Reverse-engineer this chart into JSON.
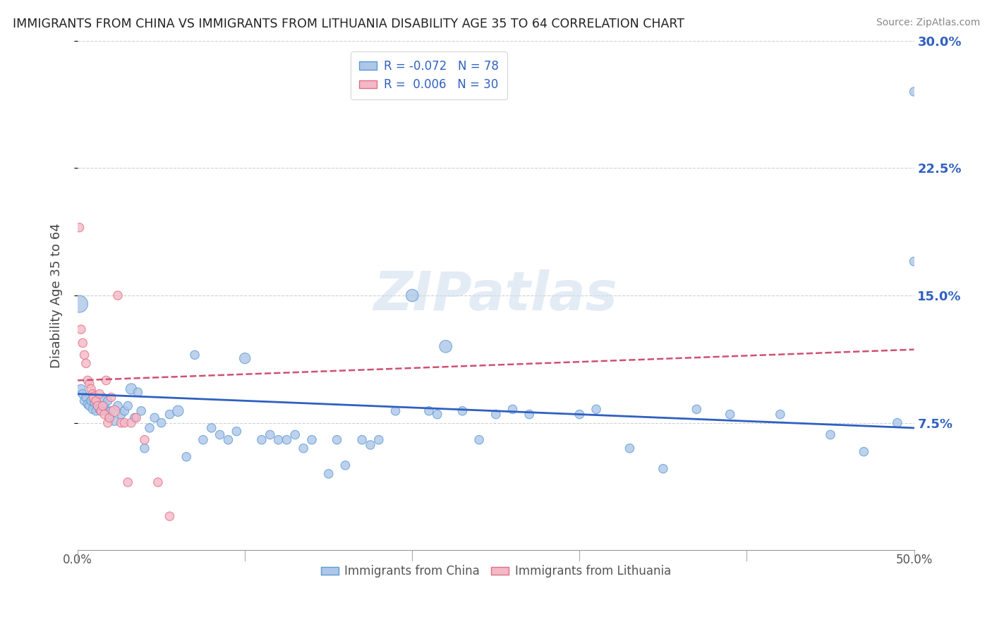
{
  "title": "IMMIGRANTS FROM CHINA VS IMMIGRANTS FROM LITHUANIA DISABILITY AGE 35 TO 64 CORRELATION CHART",
  "source": "Source: ZipAtlas.com",
  "ylabel": "Disability Age 35 to 64",
  "xlim": [
    0,
    0.5
  ],
  "ylim": [
    0,
    0.3
  ],
  "yticks": [
    0.075,
    0.15,
    0.225,
    0.3
  ],
  "ytick_labels": [
    "7.5%",
    "15.0%",
    "22.5%",
    "30.0%"
  ],
  "xtick_left_label": "0.0%",
  "xtick_right_label": "50.0%",
  "china_color": "#aec6e8",
  "china_edge_color": "#5b9bd5",
  "lithuania_color": "#f4b8c8",
  "lithuania_edge_color": "#e07080",
  "china_line_color": "#3060c0",
  "lithuania_line_color": "#d05070",
  "legend_china_label": "R = -0.072   N = 78",
  "legend_lithuania_label": "R =  0.006   N = 30",
  "bottom_legend_china": "Immigrants from China",
  "bottom_legend_lithuania": "Immigrants from Lithuania",
  "watermark": "ZIPatlas",
  "china_x": [
    0.001,
    0.002,
    0.003,
    0.004,
    0.005,
    0.006,
    0.007,
    0.008,
    0.009,
    0.01,
    0.011,
    0.012,
    0.013,
    0.014,
    0.015,
    0.016,
    0.017,
    0.018,
    0.019,
    0.02,
    0.022,
    0.024,
    0.026,
    0.028,
    0.03,
    0.032,
    0.034,
    0.036,
    0.038,
    0.04,
    0.043,
    0.046,
    0.05,
    0.055,
    0.06,
    0.065,
    0.07,
    0.075,
    0.08,
    0.085,
    0.09,
    0.095,
    0.1,
    0.11,
    0.115,
    0.12,
    0.125,
    0.13,
    0.135,
    0.14,
    0.15,
    0.155,
    0.16,
    0.17,
    0.175,
    0.18,
    0.19,
    0.2,
    0.21,
    0.215,
    0.22,
    0.23,
    0.24,
    0.25,
    0.26,
    0.27,
    0.3,
    0.31,
    0.33,
    0.35,
    0.37,
    0.39,
    0.42,
    0.45,
    0.47,
    0.49,
    0.5,
    0.5
  ],
  "china_y": [
    0.145,
    0.095,
    0.092,
    0.088,
    0.09,
    0.086,
    0.085,
    0.088,
    0.083,
    0.087,
    0.082,
    0.085,
    0.083,
    0.082,
    0.09,
    0.085,
    0.082,
    0.088,
    0.078,
    0.082,
    0.076,
    0.085,
    0.08,
    0.082,
    0.085,
    0.095,
    0.078,
    0.093,
    0.082,
    0.06,
    0.072,
    0.078,
    0.075,
    0.08,
    0.082,
    0.055,
    0.115,
    0.065,
    0.072,
    0.068,
    0.065,
    0.07,
    0.113,
    0.065,
    0.068,
    0.065,
    0.065,
    0.068,
    0.06,
    0.065,
    0.045,
    0.065,
    0.05,
    0.065,
    0.062,
    0.065,
    0.082,
    0.15,
    0.082,
    0.08,
    0.12,
    0.082,
    0.065,
    0.08,
    0.083,
    0.08,
    0.08,
    0.083,
    0.06,
    0.048,
    0.083,
    0.08,
    0.08,
    0.068,
    0.058,
    0.075,
    0.27,
    0.17
  ],
  "china_size": [
    300,
    80,
    80,
    80,
    80,
    80,
    80,
    80,
    80,
    80,
    80,
    80,
    80,
    80,
    80,
    80,
    80,
    80,
    80,
    80,
    80,
    80,
    80,
    80,
    80,
    120,
    80,
    80,
    80,
    80,
    80,
    80,
    80,
    80,
    120,
    80,
    80,
    80,
    80,
    80,
    80,
    80,
    120,
    80,
    80,
    80,
    80,
    80,
    80,
    80,
    80,
    80,
    80,
    80,
    80,
    80,
    80,
    160,
    80,
    80,
    160,
    80,
    80,
    80,
    80,
    80,
    80,
    80,
    80,
    80,
    80,
    80,
    80,
    80,
    80,
    80,
    80,
    80
  ],
  "lithuania_x": [
    0.001,
    0.002,
    0.003,
    0.004,
    0.005,
    0.006,
    0.007,
    0.008,
    0.009,
    0.01,
    0.011,
    0.012,
    0.013,
    0.014,
    0.015,
    0.016,
    0.017,
    0.018,
    0.019,
    0.02,
    0.022,
    0.024,
    0.026,
    0.028,
    0.03,
    0.032,
    0.035,
    0.04,
    0.048,
    0.055
  ],
  "lithuania_y": [
    0.19,
    0.13,
    0.122,
    0.115,
    0.11,
    0.1,
    0.098,
    0.095,
    0.092,
    0.09,
    0.088,
    0.085,
    0.092,
    0.082,
    0.085,
    0.08,
    0.1,
    0.075,
    0.078,
    0.09,
    0.082,
    0.15,
    0.075,
    0.075,
    0.04,
    0.075,
    0.078,
    0.065,
    0.04,
    0.02
  ],
  "lithuania_size": [
    80,
    80,
    80,
    80,
    80,
    80,
    80,
    80,
    80,
    120,
    80,
    80,
    80,
    80,
    80,
    80,
    80,
    80,
    80,
    80,
    120,
    80,
    80,
    80,
    80,
    80,
    80,
    80,
    80,
    80
  ],
  "china_trend_x": [
    0.0,
    0.5
  ],
  "china_trend_y": [
    0.092,
    0.072
  ],
  "lithuania_trend_x": [
    0.0,
    0.055
  ],
  "lithuania_trend_y": [
    0.1,
    0.102
  ]
}
